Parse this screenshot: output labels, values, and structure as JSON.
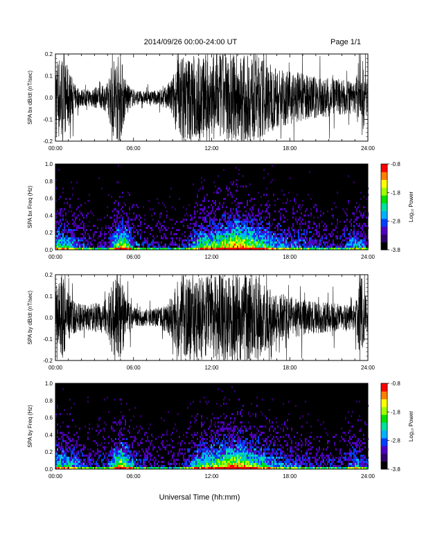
{
  "header": {
    "title": "2014/09/26  00:00-24:00 UT",
    "page_label": "Page 1/1"
  },
  "footer": {
    "xlabel": "Universal Time (hh:mm)"
  },
  "chart_data": [
    {
      "type": "line",
      "ylabel": "SPA bx dB/dt (nT/sec)",
      "x_tick_labels": [
        "00:00",
        "06:00",
        "12:00",
        "18:00",
        "24:00"
      ],
      "y_tick_labels": [
        "-0.2",
        "-0.1",
        "0.0",
        "0.1",
        "0.2"
      ],
      "xlim": [
        0,
        24
      ],
      "ylim": [
        -0.2,
        0.2
      ],
      "x_unit": "hours UT",
      "series": [
        {
          "color": "#000000",
          "x": [
            0,
            0.5,
            1,
            1.5,
            2,
            2.5,
            3,
            3.5,
            4,
            4.5,
            5,
            5.5,
            6,
            6.5,
            7,
            7.5,
            8,
            8.5,
            9,
            9.5,
            10,
            10.5,
            11,
            11.5,
            12,
            12.5,
            13,
            13.5,
            14,
            14.5,
            15,
            15.5,
            16,
            16.5,
            17,
            17.5,
            18,
            18.5,
            19,
            19.5,
            20,
            20.5,
            21,
            21.5,
            22,
            22.5,
            23,
            23.5,
            24
          ],
          "envelope": [
            0.2,
            0.2,
            0.14,
            0.06,
            0.04,
            0.04,
            0.05,
            0.05,
            0.07,
            0.2,
            0.2,
            0.06,
            0.04,
            0.03,
            0.03,
            0.03,
            0.04,
            0.05,
            0.1,
            0.2,
            0.2,
            0.2,
            0.2,
            0.2,
            0.2,
            0.2,
            0.2,
            0.2,
            0.2,
            0.2,
            0.2,
            0.2,
            0.18,
            0.16,
            0.14,
            0.13,
            0.12,
            0.12,
            0.11,
            0.1,
            0.1,
            0.09,
            0.09,
            0.08,
            0.08,
            0.08,
            0.07,
            0.2,
            0.06
          ]
        }
      ]
    },
    {
      "type": "heatmap",
      "ylabel": "SPA bx Freq (Hz)",
      "x_tick_labels": [
        "00:00",
        "06:00",
        "12:00",
        "18:00",
        "24:00"
      ],
      "y_tick_labels": [
        "0.0",
        "0.2",
        "0.4",
        "0.6",
        "0.8",
        "1.0"
      ],
      "xlim": [
        0,
        24
      ],
      "ylim": [
        0,
        1.0
      ],
      "colorbar": {
        "label": "Log₁₀ Power",
        "tick_labels": [
          "-0.8",
          "-1.8",
          "-2.8",
          "-3.8"
        ],
        "range": [
          -3.8,
          -0.8
        ],
        "colors": [
          "#000000",
          "#30006a",
          "#5000c0",
          "#0040ff",
          "#00b0ff",
          "#00e0a0",
          "#00e000",
          "#a0ff00",
          "#ffff00",
          "#ff8000",
          "#ff0000"
        ]
      },
      "activity_by_hour": [
        0.55,
        0.45,
        0.25,
        0.15,
        0.2,
        0.8,
        0.3,
        0.2,
        0.15,
        0.15,
        0.2,
        0.55,
        0.6,
        0.75,
        0.9,
        0.7,
        0.55,
        0.4,
        0.35,
        0.3,
        0.25,
        0.2,
        0.2,
        0.45,
        0.25
      ]
    },
    {
      "type": "line",
      "ylabel": "SPA by dB/dt (nT/sec)",
      "x_tick_labels": [
        "00:00",
        "06:00",
        "12:00",
        "18:00",
        "24:00"
      ],
      "y_tick_labels": [
        "-0.2",
        "-0.1",
        "0.0",
        "0.1",
        "0.2"
      ],
      "xlim": [
        0,
        24
      ],
      "ylim": [
        -0.2,
        0.2
      ],
      "x_unit": "hours UT",
      "series": [
        {
          "color": "#000000",
          "x": [
            0,
            0.5,
            1,
            1.5,
            2,
            2.5,
            3,
            3.5,
            4,
            4.5,
            5,
            5.5,
            6,
            6.5,
            7,
            7.5,
            8,
            8.5,
            9,
            9.5,
            10,
            10.5,
            11,
            11.5,
            12,
            12.5,
            13,
            13.5,
            14,
            14.5,
            15,
            15.5,
            16,
            16.5,
            17,
            17.5,
            18,
            18.5,
            19,
            19.5,
            20,
            20.5,
            21,
            21.5,
            22,
            22.5,
            23,
            23.5,
            24
          ],
          "envelope": [
            0.2,
            0.2,
            0.12,
            0.08,
            0.06,
            0.06,
            0.07,
            0.07,
            0.09,
            0.2,
            0.2,
            0.09,
            0.05,
            0.04,
            0.04,
            0.04,
            0.05,
            0.07,
            0.1,
            0.2,
            0.2,
            0.2,
            0.2,
            0.2,
            0.2,
            0.2,
            0.2,
            0.2,
            0.2,
            0.2,
            0.2,
            0.2,
            0.16,
            0.14,
            0.12,
            0.11,
            0.1,
            0.09,
            0.09,
            0.08,
            0.08,
            0.07,
            0.07,
            0.07,
            0.06,
            0.06,
            0.06,
            0.2,
            0.06
          ]
        }
      ]
    },
    {
      "type": "heatmap",
      "ylabel": "SPA by Freq (Hz)",
      "x_tick_labels": [
        "00:00",
        "06:00",
        "12:00",
        "18:00",
        "24:00"
      ],
      "y_tick_labels": [
        "0.0",
        "0.2",
        "0.4",
        "0.6",
        "0.8",
        "1.0"
      ],
      "xlim": [
        0,
        24
      ],
      "ylim": [
        0,
        1.0
      ],
      "colorbar": {
        "label": "Log₁₀ Power",
        "tick_labels": [
          "-0.8",
          "-1.8",
          "-2.8",
          "-3.8"
        ],
        "range": [
          -3.8,
          -0.8
        ],
        "colors": [
          "#000000",
          "#30006a",
          "#5000c0",
          "#0040ff",
          "#00b0ff",
          "#00e0a0",
          "#00e000",
          "#a0ff00",
          "#ffff00",
          "#ff8000",
          "#ff0000"
        ]
      },
      "activity_by_hour": [
        0.5,
        0.45,
        0.3,
        0.2,
        0.25,
        0.8,
        0.3,
        0.2,
        0.15,
        0.15,
        0.25,
        0.55,
        0.6,
        0.75,
        0.85,
        0.65,
        0.5,
        0.35,
        0.3,
        0.25,
        0.2,
        0.2,
        0.2,
        0.4,
        0.25
      ]
    }
  ]
}
